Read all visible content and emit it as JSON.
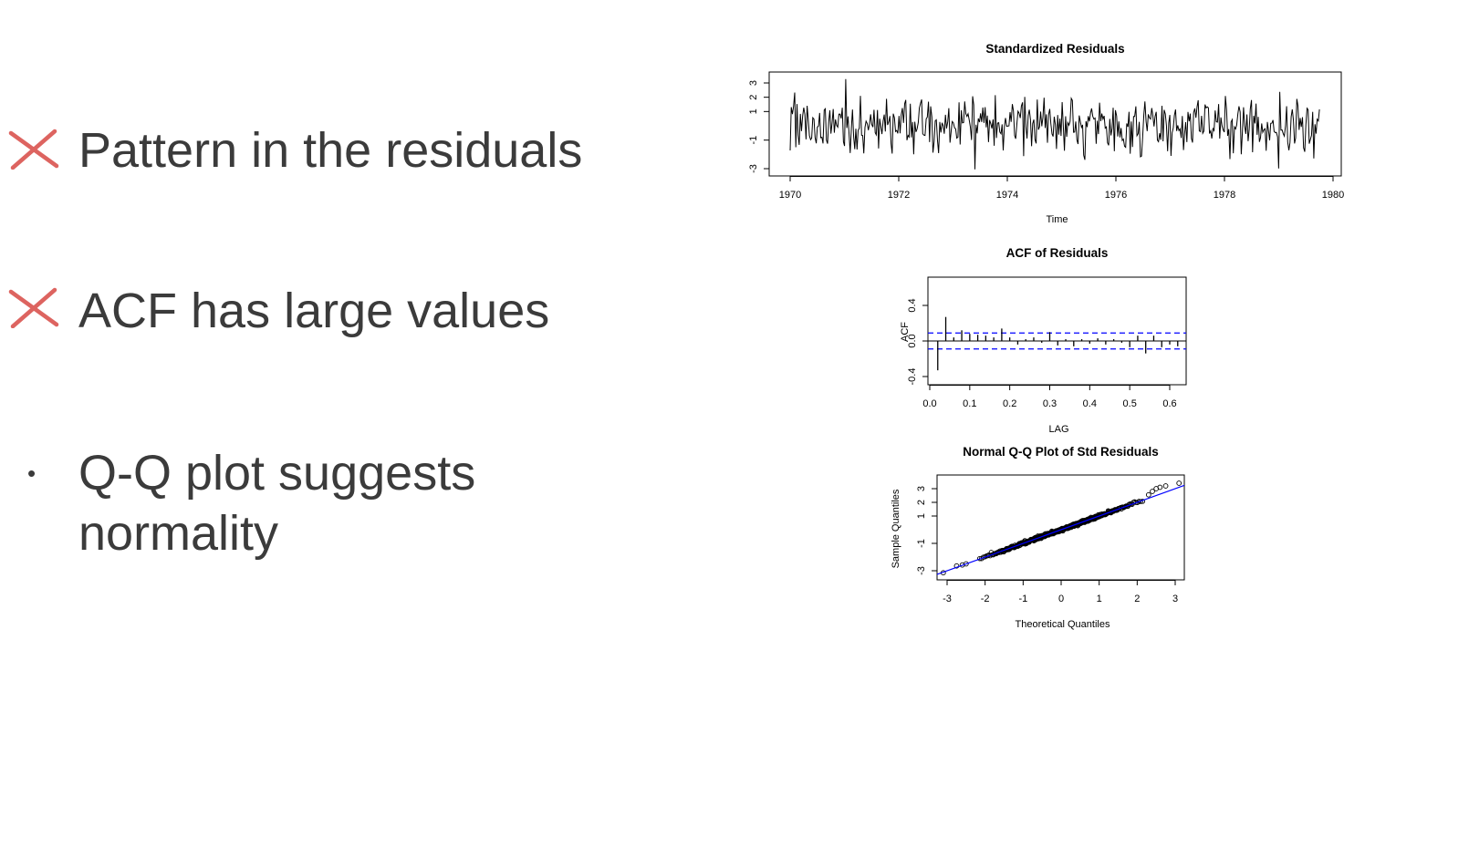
{
  "bullets": [
    {
      "marker": "x-mark",
      "marker_color": "#d9534f",
      "text": "Pattern in the residuals"
    },
    {
      "marker": "x-mark",
      "marker_color": "#d9534f",
      "text": "ACF has large values"
    },
    {
      "marker": "dot",
      "lines": [
        "Q-Q plot suggests",
        "normality"
      ]
    }
  ],
  "chart_data": [
    {
      "type": "line",
      "title": "Standardized Residuals",
      "xlabel": "Time",
      "ylabel": "",
      "xlim": [
        1970,
        1980
      ],
      "ylim": [
        -3,
        3.6
      ],
      "x_ticks": [
        "1970",
        "1972",
        "1974",
        "1976",
        "1978",
        "1980"
      ],
      "y_ticks": [
        "-3",
        "-1",
        "1",
        "2",
        "3"
      ],
      "x_start": 1970.0,
      "x_end": 1979.75,
      "n_points": 468,
      "color": "#000000"
    },
    {
      "type": "bar",
      "title": "ACF of Residuals",
      "xlabel": "LAG",
      "ylabel": "ACF",
      "xlim": [
        0.0,
        0.65
      ],
      "ylim": [
        -0.45,
        0.6
      ],
      "x_ticks": [
        "0.0",
        "0.1",
        "0.2",
        "0.3",
        "0.4",
        "0.5",
        "0.6"
      ],
      "y_ticks": [
        "-0.4",
        "0.0",
        "0.4"
      ],
      "confidence_band": 0.09,
      "band_color": "#0000ff",
      "lags": [
        0.02,
        0.04,
        0.06,
        0.08,
        0.1,
        0.12,
        0.14,
        0.16,
        0.18,
        0.2,
        0.22,
        0.24,
        0.26,
        0.28,
        0.3,
        0.32,
        0.34,
        0.36,
        0.38,
        0.4,
        0.42,
        0.44,
        0.46,
        0.48,
        0.5,
        0.52,
        0.54,
        0.56,
        0.58,
        0.6,
        0.62
      ],
      "values": [
        -0.33,
        0.27,
        0.04,
        0.12,
        0.08,
        0.07,
        0.06,
        0.04,
        0.14,
        0.04,
        -0.04,
        0.02,
        0.04,
        -0.02,
        0.1,
        -0.05,
        0.02,
        -0.06,
        0.02,
        -0.03,
        0.03,
        -0.04,
        0.02,
        -0.02,
        -0.07,
        0.06,
        -0.14,
        0.06,
        -0.07,
        -0.04,
        -0.06
      ]
    },
    {
      "type": "scatter",
      "title": "Normal Q-Q Plot of Std Residuals",
      "xlabel": "Theoretical Quantiles",
      "ylabel": "Sample Quantiles",
      "xlim": [
        -3.3,
        3.35
      ],
      "ylim": [
        -3.2,
        3.55
      ],
      "x_ticks": [
        "-3",
        "-2",
        "-1",
        "0",
        "1",
        "2",
        "3"
      ],
      "y_ticks": [
        "-3",
        "-1",
        "1",
        "2",
        "3"
      ],
      "reference_line": {
        "intercept": 0.0,
        "slope": 1.0,
        "color": "#0000ff"
      },
      "n_points": 468,
      "tail_points": [
        [
          -3.1,
          -3.15
        ],
        [
          -2.75,
          -2.65
        ],
        [
          -2.6,
          -2.58
        ],
        [
          -2.5,
          -2.5
        ],
        [
          2.3,
          2.55
        ],
        [
          2.4,
          2.8
        ],
        [
          2.5,
          3.0
        ],
        [
          2.6,
          3.1
        ],
        [
          2.75,
          3.2
        ],
        [
          3.1,
          3.4
        ]
      ]
    }
  ]
}
